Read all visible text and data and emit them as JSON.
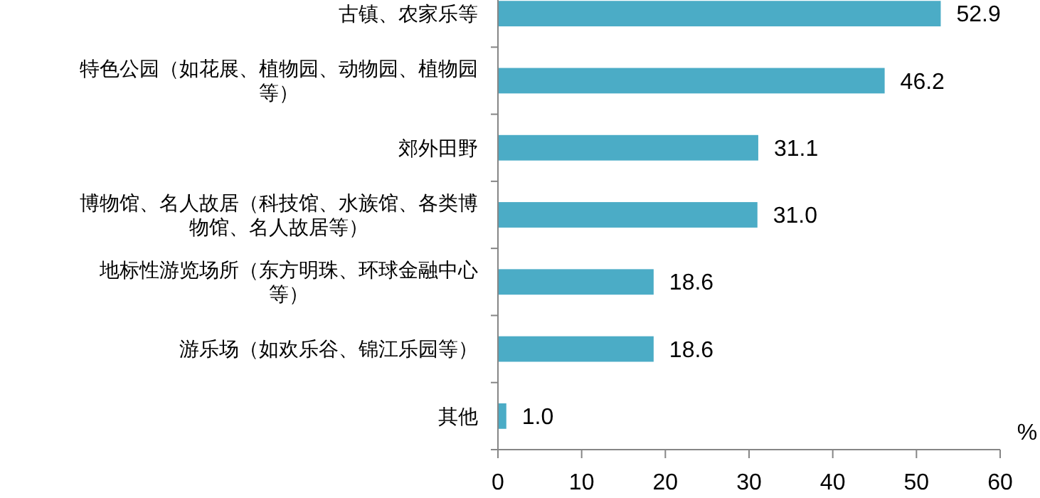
{
  "chart_data": {
    "type": "bar",
    "orientation": "horizontal",
    "xlabel": "%",
    "categories": [
      "古镇、农家乐等",
      "特色公园（如花展、植物园、动物园、植物园等）",
      "郊外田野",
      "博物馆、名人故居（科技馆、水族馆、各类博物馆、名人故居等）",
      "地标性游览场所（东方明珠、环球金融中心等）",
      "游乐场（如欢乐谷、锦江乐园等）",
      "其他"
    ],
    "values": [
      52.9,
      46.2,
      31.1,
      31.0,
      18.6,
      18.6,
      1.0
    ],
    "color": "#4bacc6",
    "xlim": [
      0,
      60
    ],
    "xticks": [
      0,
      10,
      20,
      30,
      40,
      50,
      60
    ],
    "value_labels": [
      "52.9",
      "46.2",
      "31.1",
      "31.0",
      "18.6",
      "18.6",
      "1.0"
    ],
    "grid": false
  }
}
